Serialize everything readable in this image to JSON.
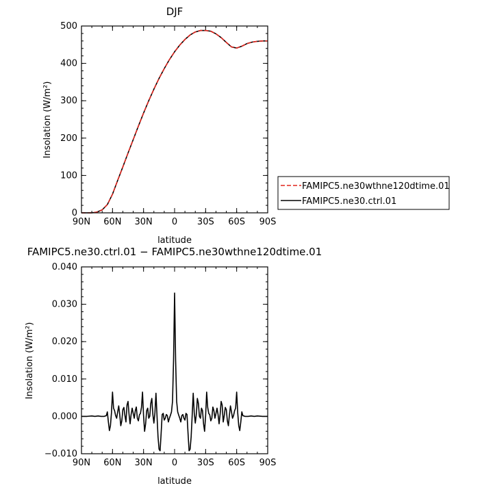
{
  "chart_data": [
    {
      "type": "line",
      "title": "DJF",
      "xlabel": "latitude",
      "ylabel": "Insolation  (W/m²)",
      "xlim": [
        90,
        -90
      ],
      "ylim": [
        0,
        500
      ],
      "x_ticks": [
        90,
        60,
        30,
        0,
        -30,
        -60,
        -90
      ],
      "x_tick_labels": [
        "90N",
        "60N",
        "30N",
        "0",
        "30S",
        "60S",
        "90S"
      ],
      "y_ticks": [
        0,
        100,
        200,
        300,
        400,
        500
      ],
      "y_tick_labels": [
        "0",
        "100",
        "200",
        "300",
        "400",
        "500"
      ],
      "legend": {
        "placement": "right"
      },
      "x": [
        90,
        85,
        80,
        75,
        70,
        65,
        60,
        55,
        50,
        45,
        40,
        35,
        30,
        25,
        20,
        15,
        10,
        5,
        0,
        -5,
        -10,
        -15,
        -20,
        -25,
        -30,
        -35,
        -40,
        -45,
        -50,
        -55,
        -60,
        -65,
        -70,
        -75,
        -80,
        -85,
        -90
      ],
      "series": [
        {
          "name": "FAMIPC5.ne30wthne120dtime.01",
          "color": "#e0241c",
          "dash": "dashed",
          "values": [
            0,
            0,
            0,
            2,
            8,
            22,
            50,
            87,
            123,
            160,
            196,
            232,
            267,
            300,
            331,
            360,
            386,
            410,
            431,
            449,
            464,
            476,
            484,
            488,
            488,
            486,
            479,
            469,
            456,
            444,
            441,
            446,
            453,
            457,
            459,
            460,
            460
          ]
        },
        {
          "name": "FAMIPC5.ne30.ctrl.01",
          "color": "#000000",
          "dash": "solid",
          "values": [
            0,
            0,
            0,
            2,
            8,
            22,
            50,
            87,
            123,
            160,
            196,
            232,
            267,
            300,
            331,
            360,
            386,
            410,
            431,
            449,
            464,
            476,
            484,
            488,
            488,
            486,
            479,
            469,
            456,
            444,
            441,
            446,
            453,
            457,
            459,
            460,
            460
          ]
        }
      ]
    },
    {
      "type": "line",
      "title": "FAMIPC5.ne30.ctrl.01 − FAMIPC5.ne30wthne120dtime.01",
      "xlabel": "latitude",
      "ylabel": "Insolation  (W/m²)",
      "xlim": [
        90,
        -90
      ],
      "ylim": [
        -0.01,
        0.04
      ],
      "x_ticks": [
        90,
        60,
        30,
        0,
        -30,
        -60,
        -90
      ],
      "x_tick_labels": [
        "90N",
        "60N",
        "30N",
        "0",
        "30S",
        "60S",
        "90S"
      ],
      "y_ticks": [
        -0.01,
        0,
        0.01,
        0.02,
        0.03,
        0.04
      ],
      "y_tick_labels": [
        "−0.010",
        "0.000",
        "0.010",
        "0.020",
        "0.030",
        "0.040"
      ],
      "x": [
        90,
        85,
        80,
        77,
        74,
        71,
        68,
        66,
        65,
        64,
        63,
        62,
        61,
        60,
        59,
        58,
        57,
        56,
        55,
        54,
        53,
        52,
        51,
        50,
        49,
        48,
        47,
        46,
        45,
        44,
        43,
        42,
        41,
        40,
        39,
        38,
        37,
        36,
        35,
        34,
        33,
        32,
        31,
        30,
        29,
        28,
        27,
        26,
        25,
        24,
        23,
        22,
        21,
        20,
        19,
        18,
        17,
        16,
        15,
        14,
        13,
        12,
        11,
        10,
        9,
        8,
        7,
        6,
        5,
        4,
        3,
        2,
        1,
        0,
        -1,
        -2,
        -3,
        -4,
        -5,
        -6,
        -7,
        -8,
        -9,
        -10,
        -11,
        -12,
        -13,
        -14,
        -15,
        -16,
        -17,
        -18,
        -19,
        -20,
        -21,
        -22,
        -23,
        -24,
        -25,
        -26,
        -27,
        -28,
        -29,
        -30,
        -31,
        -32,
        -33,
        -34,
        -35,
        -36,
        -37,
        -38,
        -39,
        -40,
        -41,
        -42,
        -43,
        -44,
        -45,
        -46,
        -47,
        -48,
        -49,
        -50,
        -51,
        -52,
        -53,
        -54,
        -55,
        -56,
        -57,
        -58,
        -59,
        -60,
        -61,
        -62,
        -63,
        -64,
        -65,
        -66,
        -68,
        -71,
        -74,
        -77,
        -80,
        -85,
        -90
      ],
      "series": [
        {
          "name": "",
          "color": "#000000",
          "dash": "solid",
          "values": [
            0,
            0,
            0.0001,
            0,
            0.0001,
            0,
            0,
            0.0002,
            0.0012,
            -0.0015,
            -0.0038,
            -0.0025,
            0.001,
            0.0065,
            0.0022,
            0.0015,
            0.0002,
            -0.0005,
            0.0012,
            0.0028,
            0.0004,
            -0.0025,
            -0.0012,
            0.0018,
            0.0024,
            0.0002,
            -0.0015,
            0.003,
            0.004,
            0.0005,
            -0.002,
            0.0005,
            0.0022,
            0.0008,
            -0.0005,
            0.0015,
            0.0025,
            -0.0005,
            -0.0012,
            0.0004,
            0.0008,
            0.0024,
            0.0065,
            0.0002,
            -0.004,
            -0.002,
            0.0015,
            0.0022,
            -0.0005,
            0.0,
            0.0035,
            0.0048,
            0.0005,
            -0.0018,
            0.001,
            0.0062,
            0.0002,
            -0.0055,
            -0.0088,
            -0.0092,
            -0.0045,
            0.0005,
            0.0008,
            -0.001,
            -0.0005,
            0.0005,
            0.0002,
            -0.0015,
            -0.0005,
            0.0003,
            0.0012,
            0.004,
            0.015,
            0.033,
            0.015,
            0.004,
            0.0012,
            0.0003,
            -0.0005,
            -0.0015,
            0.0002,
            0.0005,
            -0.0005,
            -0.001,
            0.0008,
            0.0005,
            -0.0045,
            -0.0092,
            -0.0088,
            -0.0055,
            0.0002,
            0.0062,
            0.001,
            -0.0018,
            0.0005,
            0.0048,
            0.0035,
            0.0,
            -0.0005,
            0.0022,
            0.0015,
            -0.002,
            -0.004,
            0.0002,
            0.0065,
            0.0024,
            0.0008,
            0.0004,
            -0.0012,
            -0.0005,
            0.0025,
            0.0015,
            -0.0005,
            0.0008,
            0.0022,
            0.0005,
            -0.002,
            0.0005,
            0.004,
            0.003,
            -0.0015,
            0.0002,
            0.0024,
            0.0018,
            -0.0012,
            -0.0025,
            0.0004,
            0.0028,
            0.0012,
            -0.0005,
            0.0002,
            0.0015,
            0.0022,
            0.0065,
            0.001,
            -0.0025,
            -0.0038,
            -0.0015,
            0.0012,
            0.0002,
            0,
            0,
            0.0001,
            0,
            0.0001,
            0,
            0
          ]
        }
      ]
    }
  ]
}
